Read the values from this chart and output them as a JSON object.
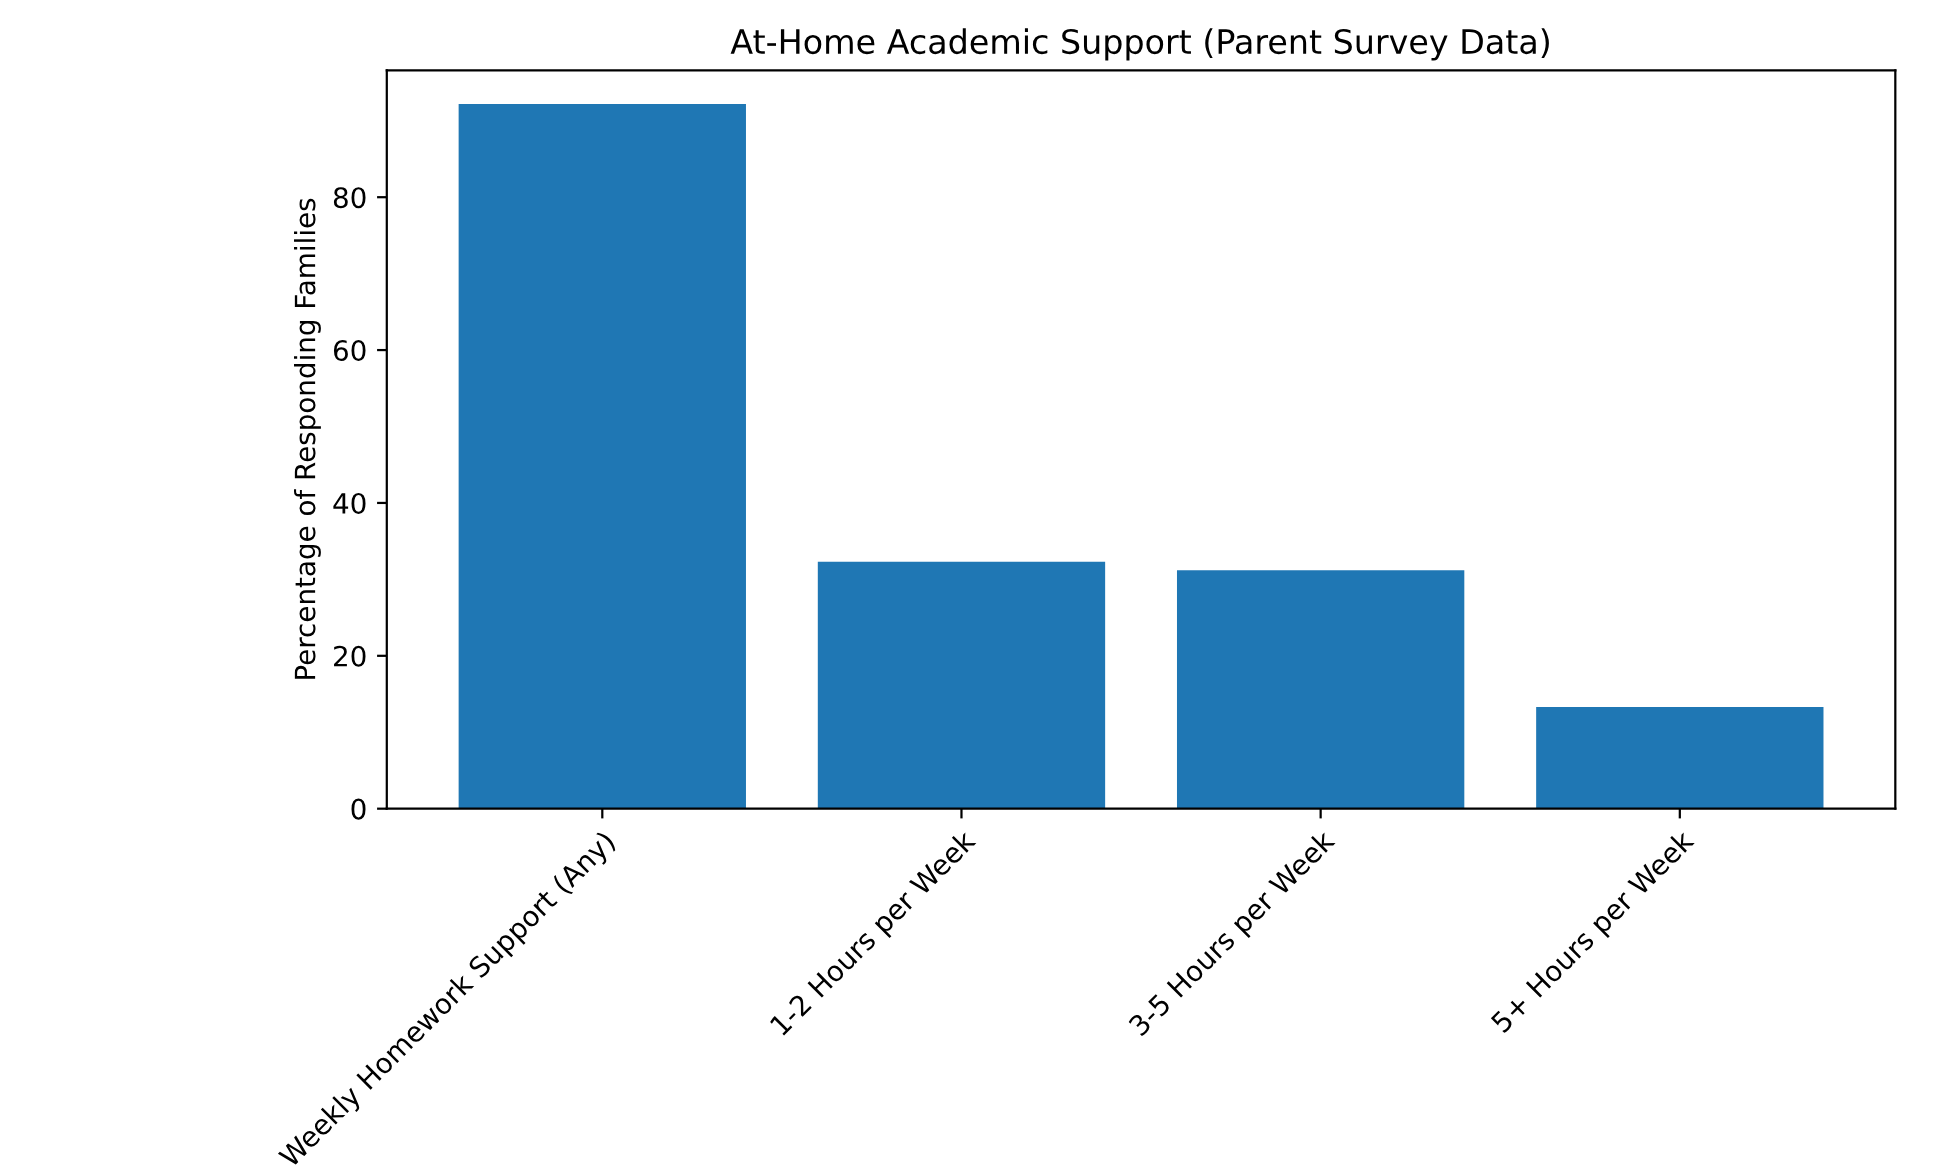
{
  "chart_data": {
    "type": "bar",
    "title": "At-Home Academic Support (Parent Survey Data)",
    "ylabel": "Percentage of Responding Families",
    "categories": [
      "Weekly Homework Support (Any)",
      "1-2 Hours per Week",
      "3-5 Hours per Week",
      "5+ Hours per Week"
    ],
    "values": [
      92.2,
      32.3,
      31.2,
      13.3
    ],
    "color": "#1f77b4",
    "ylim": [
      0,
      96.6
    ],
    "yticks": [
      0,
      20,
      40,
      60,
      80
    ],
    "grid": false
  }
}
